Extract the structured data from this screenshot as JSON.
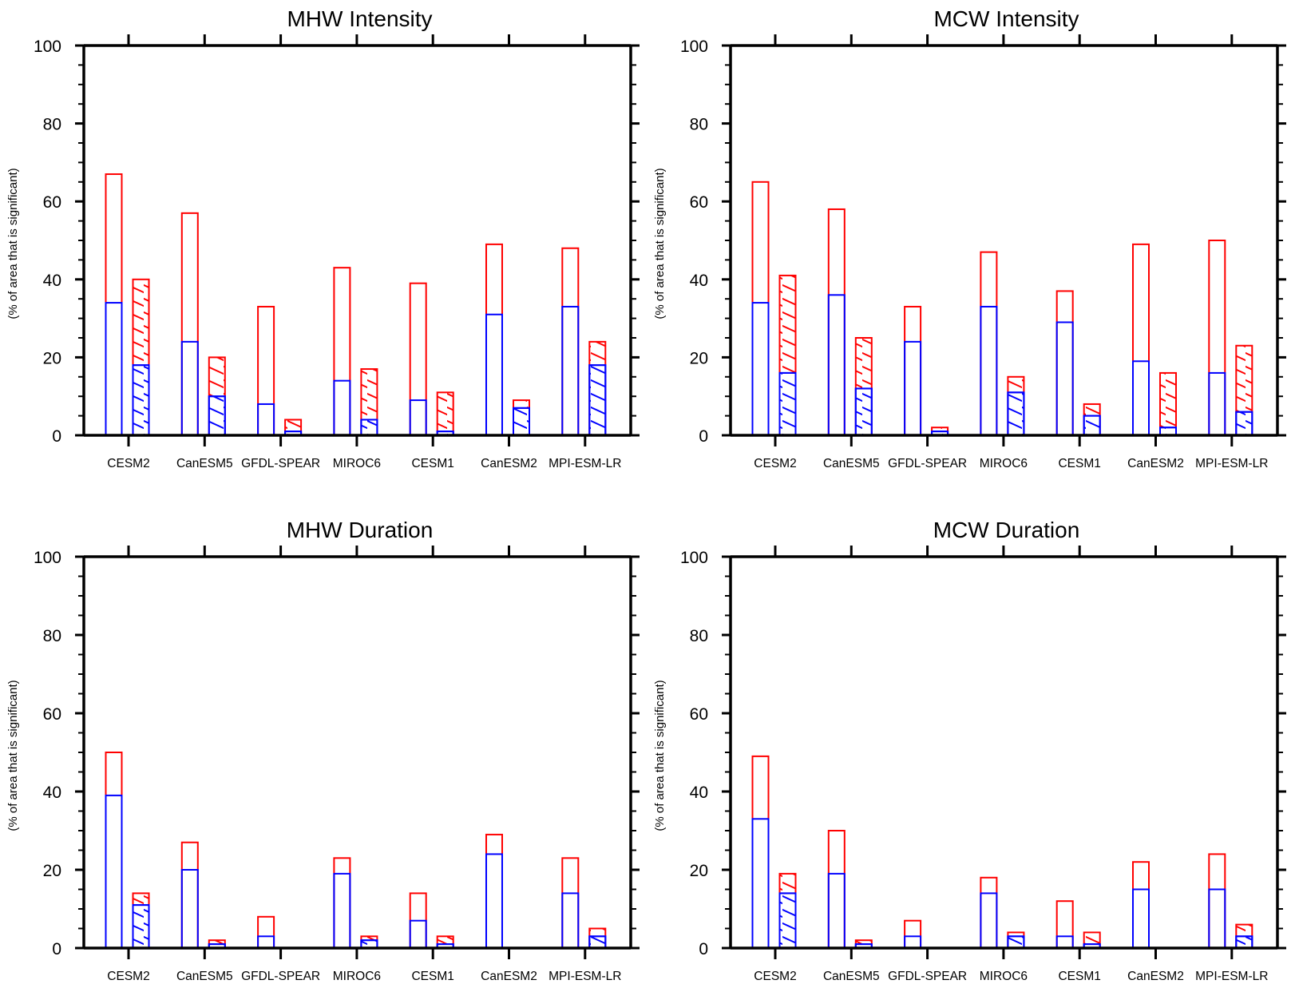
{
  "chart_data": [
    {
      "type": "bar",
      "title": "MHW Intensity",
      "xlabel": "",
      "ylabel": "(% of area that is significant)",
      "ylim": [
        0,
        100
      ],
      "yticks": [
        0,
        20,
        40,
        60,
        80,
        100
      ],
      "grid": false,
      "categories": [
        "CESM2",
        "CanESM5",
        "GFDL-SPEAR",
        "MIROC6",
        "CESM1",
        "CanESM2",
        "MPI-ESM-LR"
      ],
      "series": [
        {
          "name": "open bar total (red outline)",
          "group": "left",
          "color": "#ff0000",
          "hatched": false,
          "values": [
            67,
            57,
            33,
            43,
            39,
            49,
            48
          ]
        },
        {
          "name": "open bar subset (blue outline)",
          "group": "left",
          "color": "#0000ff",
          "hatched": false,
          "values": [
            34,
            24,
            8,
            14,
            9,
            31,
            33
          ]
        },
        {
          "name": "hatched bar total (red outline)",
          "group": "right",
          "color": "#ff0000",
          "hatched": true,
          "values": [
            40,
            20,
            4,
            17,
            11,
            9,
            24
          ]
        },
        {
          "name": "hatched bar subset (blue outline)",
          "group": "right",
          "color": "#0000ff",
          "hatched": true,
          "values": [
            18,
            10,
            1,
            4,
            1,
            7,
            18
          ]
        }
      ]
    },
    {
      "type": "bar",
      "title": "MCW Intensity",
      "xlabel": "",
      "ylabel": "(% of area that is significant)",
      "ylim": [
        0,
        100
      ],
      "yticks": [
        0,
        20,
        40,
        60,
        80,
        100
      ],
      "grid": false,
      "categories": [
        "CESM2",
        "CanESM5",
        "GFDL-SPEAR",
        "MIROC6",
        "CESM1",
        "CanESM2",
        "MPI-ESM-LR"
      ],
      "series": [
        {
          "name": "open bar total (red outline)",
          "group": "left",
          "color": "#ff0000",
          "hatched": false,
          "values": [
            65,
            58,
            33,
            47,
            37,
            49,
            50
          ]
        },
        {
          "name": "open bar subset (blue outline)",
          "group": "left",
          "color": "#0000ff",
          "hatched": false,
          "values": [
            34,
            36,
            24,
            33,
            29,
            19,
            16
          ]
        },
        {
          "name": "hatched bar total (red outline)",
          "group": "right",
          "color": "#ff0000",
          "hatched": true,
          "values": [
            41,
            25,
            2,
            15,
            8,
            16,
            23
          ]
        },
        {
          "name": "hatched bar subset (blue outline)",
          "group": "right",
          "color": "#0000ff",
          "hatched": true,
          "values": [
            16,
            12,
            1,
            11,
            5,
            2,
            6
          ]
        }
      ]
    },
    {
      "type": "bar",
      "title": "MHW Duration",
      "xlabel": "",
      "ylabel": "(% of area that is significant)",
      "ylim": [
        0,
        100
      ],
      "yticks": [
        0,
        20,
        40,
        60,
        80,
        100
      ],
      "grid": false,
      "categories": [
        "CESM2",
        "CanESM5",
        "GFDL-SPEAR",
        "MIROC6",
        "CESM1",
        "CanESM2",
        "MPI-ESM-LR"
      ],
      "series": [
        {
          "name": "open bar total (red outline)",
          "group": "left",
          "color": "#ff0000",
          "hatched": false,
          "values": [
            50,
            27,
            8,
            23,
            14,
            29,
            23
          ]
        },
        {
          "name": "open bar subset (blue outline)",
          "group": "left",
          "color": "#0000ff",
          "hatched": false,
          "values": [
            39,
            20,
            3,
            19,
            7,
            24,
            14
          ]
        },
        {
          "name": "hatched bar total (red outline)",
          "group": "right",
          "color": "#ff0000",
          "hatched": true,
          "values": [
            14,
            2,
            0,
            3,
            3,
            0,
            5
          ]
        },
        {
          "name": "hatched bar subset (blue outline)",
          "group": "right",
          "color": "#0000ff",
          "hatched": true,
          "values": [
            11,
            1,
            0,
            2,
            1,
            0,
            3
          ]
        }
      ]
    },
    {
      "type": "bar",
      "title": "MCW Duration",
      "xlabel": "",
      "ylabel": "(% of area that is significant)",
      "ylim": [
        0,
        100
      ],
      "yticks": [
        0,
        20,
        40,
        60,
        80,
        100
      ],
      "grid": false,
      "categories": [
        "CESM2",
        "CanESM5",
        "GFDL-SPEAR",
        "MIROC6",
        "CESM1",
        "CanESM2",
        "MPI-ESM-LR"
      ],
      "series": [
        {
          "name": "open bar total (red outline)",
          "group": "left",
          "color": "#ff0000",
          "hatched": false,
          "values": [
            49,
            30,
            7,
            18,
            12,
            22,
            24
          ]
        },
        {
          "name": "open bar subset (blue outline)",
          "group": "left",
          "color": "#0000ff",
          "hatched": false,
          "values": [
            33,
            19,
            3,
            14,
            3,
            15,
            15
          ]
        },
        {
          "name": "hatched bar total (red outline)",
          "group": "right",
          "color": "#ff0000",
          "hatched": true,
          "values": [
            19,
            2,
            0,
            4,
            4,
            0,
            6
          ]
        },
        {
          "name": "hatched bar subset (blue outline)",
          "group": "right",
          "color": "#0000ff",
          "hatched": true,
          "values": [
            14,
            1,
            0,
            3,
            1,
            0,
            3
          ]
        }
      ]
    }
  ]
}
